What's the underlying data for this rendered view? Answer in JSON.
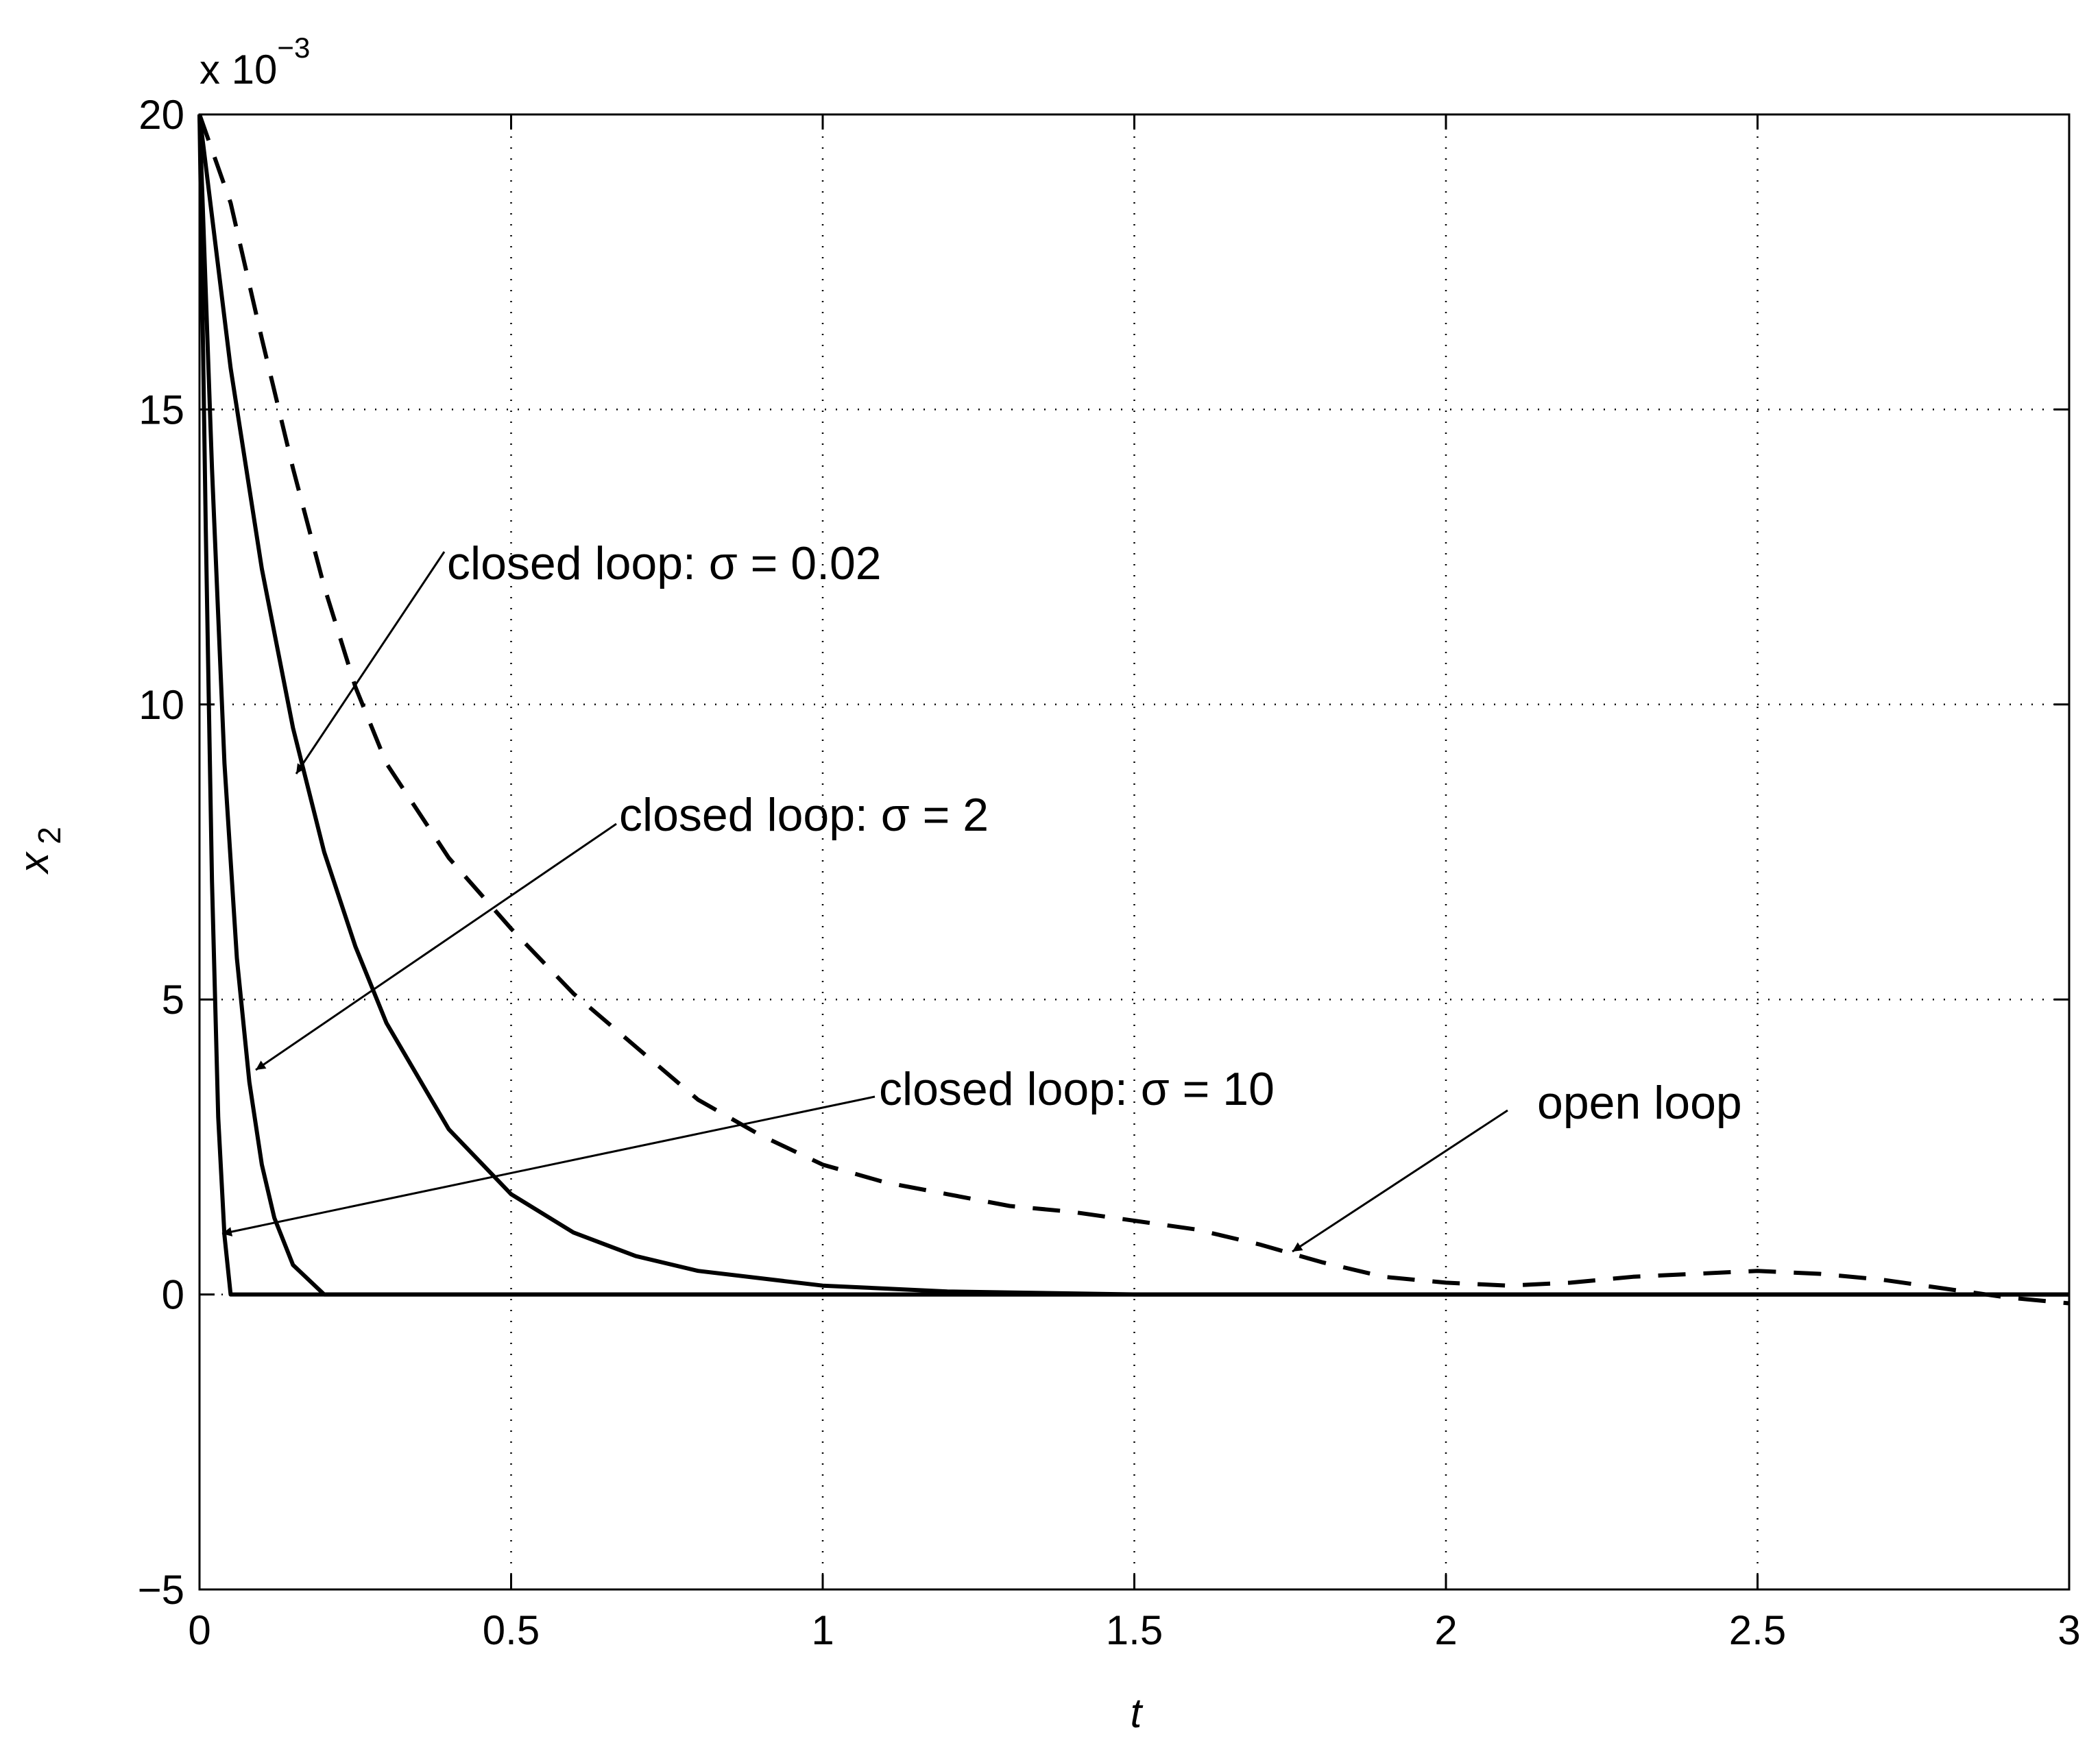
{
  "chart_data": {
    "type": "line",
    "xlabel": "t",
    "ylabel": "x",
    "ylabel_subscript": "2",
    "y_multiplier": "x 10",
    "y_multiplier_exponent": "−3",
    "xlim": [
      0,
      3
    ],
    "xticks": [
      0,
      0.5,
      1,
      1.5,
      2,
      2.5,
      3
    ],
    "ylim": [
      -5,
      20
    ],
    "yticks": [
      {
        "value": -5,
        "label": "−5"
      },
      0,
      5,
      10,
      15,
      20
    ],
    "grid": true,
    "series": [
      {
        "name": "open loop",
        "color": "#000000",
        "dash": true,
        "x": [
          0,
          0.05,
          0.1,
          0.15,
          0.2,
          0.25,
          0.3,
          0.4,
          0.5,
          0.6,
          0.7,
          0.8,
          0.9,
          1.0,
          1.1,
          1.2,
          1.3,
          1.4,
          1.5,
          1.6,
          1.7,
          1.8,
          1.9,
          2.0,
          2.1,
          2.2,
          2.3,
          2.4,
          2.5,
          2.6,
          2.7,
          2.8,
          2.9,
          3.0
        ],
        "values": [
          20,
          18.5,
          16.2,
          14.0,
          12.0,
          10.3,
          9.0,
          7.4,
          6.2,
          5.1,
          4.2,
          3.3,
          2.7,
          2.2,
          1.9,
          1.7,
          1.5,
          1.4,
          1.25,
          1.1,
          0.85,
          0.55,
          0.3,
          0.2,
          0.15,
          0.2,
          0.3,
          0.35,
          0.4,
          0.35,
          0.25,
          0.1,
          -0.05,
          -0.15
        ]
      },
      {
        "name": "closed loop: σ = 0.02",
        "color": "#000000",
        "dash": false,
        "x": [
          0,
          0.05,
          0.1,
          0.15,
          0.2,
          0.25,
          0.3,
          0.4,
          0.5,
          0.6,
          0.7,
          0.8,
          1.0,
          1.2,
          1.5,
          2,
          2.5,
          3
        ],
        "values": [
          20,
          15.7,
          12.3,
          9.6,
          7.5,
          5.9,
          4.6,
          2.8,
          1.7,
          1.05,
          0.65,
          0.4,
          0.15,
          0.05,
          0,
          0,
          0,
          0
        ]
      },
      {
        "name": "closed loop: σ = 2",
        "color": "#000000",
        "dash": false,
        "x": [
          0,
          0.02,
          0.04,
          0.06,
          0.08,
          0.1,
          0.12,
          0.15,
          0.2,
          3
        ],
        "values": [
          20,
          14,
          9,
          5.7,
          3.6,
          2.2,
          1.3,
          0.5,
          0,
          0
        ]
      },
      {
        "name": "closed loop: σ = 10",
        "color": "#000000",
        "dash": false,
        "x": [
          0,
          0.01,
          0.02,
          0.03,
          0.04,
          0.05,
          3
        ],
        "values": [
          20,
          13,
          7,
          3,
          1,
          0,
          0
        ]
      }
    ]
  }
}
